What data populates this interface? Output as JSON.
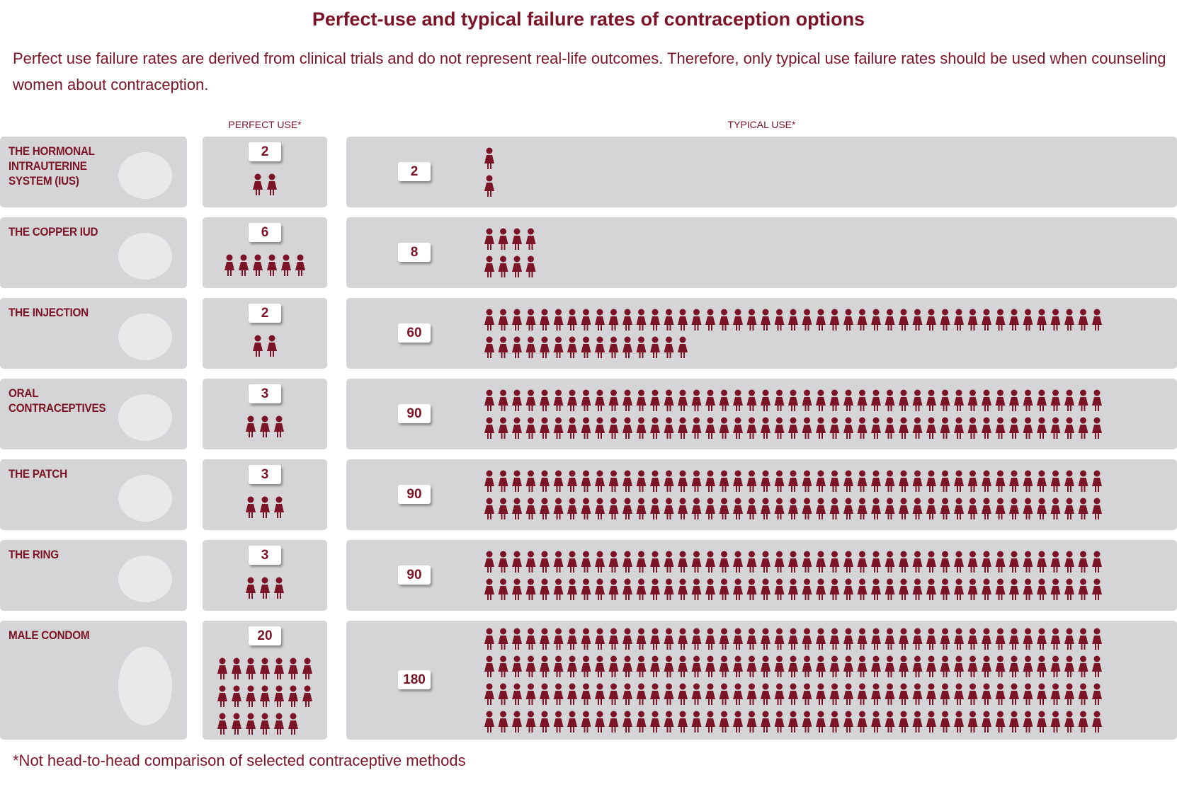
{
  "chart_data": {
    "type": "pictogram",
    "title": "Perfect-use and typical failure rates of contraception options",
    "subtitle": "Perfect use failure rates are derived from clinical trials and do not represent real-life outcomes.  Therefore, only typical use failure rates should be used when counseling women about contraception.",
    "footnote": "*Not head-to-head comparison of selected contraceptive methods",
    "categories": [
      "THE HORMONAL INTRAUTERINE SYSTEM (IUS)",
      "THE COPPER IUD",
      "THE INJECTION",
      "ORAL CONTRACEPTIVES",
      "THE PATCH",
      "THE RING",
      "MALE CONDOM"
    ],
    "series": [
      {
        "name": "PERFECT USE*",
        "color": "#7b1426",
        "values": [
          2,
          6,
          2,
          3,
          3,
          3,
          20
        ]
      },
      {
        "name": "TYPICAL USE*",
        "color": "#7b1426",
        "values": [
          2,
          8,
          60,
          90,
          90,
          90,
          180
        ]
      }
    ]
  }
}
